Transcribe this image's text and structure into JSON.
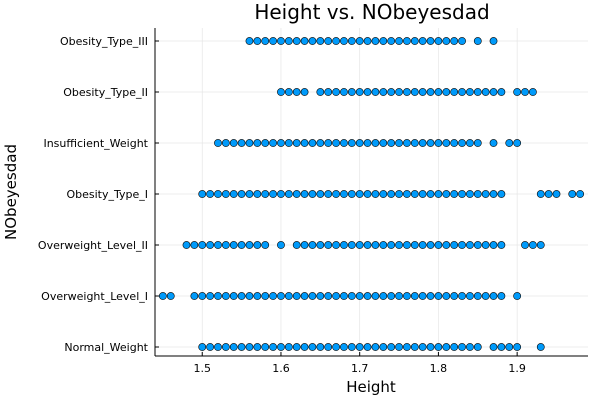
{
  "chart_data": {
    "type": "scatter",
    "title": "Height vs. NObeyesdad",
    "xlabel": "Height",
    "ylabel": "NObeyesdad",
    "xlim": [
      1.44,
      1.99
    ],
    "x_ticks": [
      "1.5",
      "1.6",
      "1.7",
      "1.8",
      "1.9"
    ],
    "x_tick_values": [
      1.5,
      1.6,
      1.7,
      1.8,
      1.9
    ],
    "categories": [
      "Normal_Weight",
      "Overweight_Level_I",
      "Overweight_Level_II",
      "Obesity_Type_I",
      "Insufficient_Weight",
      "Obesity_Type_II",
      "Obesity_Type_III"
    ],
    "grid": true,
    "point_color": "#009AFA",
    "series": [
      {
        "category": "Normal_Weight",
        "x": [
          1.5,
          1.51,
          1.52,
          1.53,
          1.54,
          1.55,
          1.56,
          1.57,
          1.58,
          1.59,
          1.6,
          1.61,
          1.62,
          1.63,
          1.64,
          1.65,
          1.66,
          1.67,
          1.68,
          1.69,
          1.7,
          1.71,
          1.72,
          1.73,
          1.74,
          1.75,
          1.76,
          1.77,
          1.78,
          1.79,
          1.8,
          1.81,
          1.82,
          1.83,
          1.84,
          1.85,
          1.87,
          1.88,
          1.89,
          1.9,
          1.93
        ]
      },
      {
        "category": "Overweight_Level_I",
        "x": [
          1.45,
          1.46,
          1.49,
          1.5,
          1.51,
          1.52,
          1.53,
          1.54,
          1.55,
          1.56,
          1.57,
          1.58,
          1.59,
          1.6,
          1.61,
          1.62,
          1.63,
          1.64,
          1.65,
          1.66,
          1.67,
          1.68,
          1.69,
          1.7,
          1.71,
          1.72,
          1.73,
          1.74,
          1.75,
          1.76,
          1.77,
          1.78,
          1.79,
          1.8,
          1.81,
          1.82,
          1.83,
          1.84,
          1.85,
          1.86,
          1.87,
          1.88,
          1.9
        ]
      },
      {
        "category": "Overweight_Level_II",
        "x": [
          1.48,
          1.49,
          1.5,
          1.51,
          1.52,
          1.53,
          1.54,
          1.55,
          1.56,
          1.57,
          1.58,
          1.6,
          1.62,
          1.63,
          1.64,
          1.65,
          1.66,
          1.67,
          1.68,
          1.69,
          1.7,
          1.71,
          1.72,
          1.73,
          1.74,
          1.75,
          1.76,
          1.77,
          1.78,
          1.79,
          1.8,
          1.81,
          1.82,
          1.83,
          1.84,
          1.85,
          1.86,
          1.87,
          1.88,
          1.91,
          1.92,
          1.93
        ]
      },
      {
        "category": "Obesity_Type_I",
        "x": [
          1.5,
          1.51,
          1.52,
          1.53,
          1.54,
          1.55,
          1.56,
          1.57,
          1.58,
          1.59,
          1.6,
          1.61,
          1.62,
          1.63,
          1.64,
          1.65,
          1.66,
          1.67,
          1.68,
          1.69,
          1.7,
          1.71,
          1.72,
          1.73,
          1.74,
          1.75,
          1.76,
          1.77,
          1.78,
          1.79,
          1.8,
          1.81,
          1.82,
          1.83,
          1.84,
          1.85,
          1.86,
          1.87,
          1.88,
          1.93,
          1.94,
          1.95,
          1.97,
          1.98
        ]
      },
      {
        "category": "Insufficient_Weight",
        "x": [
          1.52,
          1.53,
          1.54,
          1.55,
          1.56,
          1.57,
          1.58,
          1.59,
          1.6,
          1.61,
          1.62,
          1.63,
          1.64,
          1.65,
          1.66,
          1.67,
          1.68,
          1.69,
          1.7,
          1.71,
          1.72,
          1.73,
          1.74,
          1.75,
          1.76,
          1.77,
          1.78,
          1.79,
          1.8,
          1.81,
          1.82,
          1.83,
          1.84,
          1.85,
          1.87,
          1.89,
          1.9
        ]
      },
      {
        "category": "Obesity_Type_II",
        "x": [
          1.6,
          1.61,
          1.62,
          1.63,
          1.65,
          1.66,
          1.67,
          1.68,
          1.69,
          1.7,
          1.71,
          1.72,
          1.73,
          1.74,
          1.75,
          1.76,
          1.77,
          1.78,
          1.79,
          1.8,
          1.81,
          1.82,
          1.83,
          1.84,
          1.85,
          1.86,
          1.87,
          1.88,
          1.9,
          1.91,
          1.92
        ]
      },
      {
        "category": "Obesity_Type_III",
        "x": [
          1.56,
          1.57,
          1.58,
          1.59,
          1.6,
          1.61,
          1.62,
          1.63,
          1.64,
          1.65,
          1.66,
          1.67,
          1.68,
          1.69,
          1.7,
          1.71,
          1.72,
          1.73,
          1.74,
          1.75,
          1.76,
          1.77,
          1.78,
          1.79,
          1.8,
          1.81,
          1.82,
          1.83,
          1.85,
          1.87
        ]
      }
    ]
  }
}
